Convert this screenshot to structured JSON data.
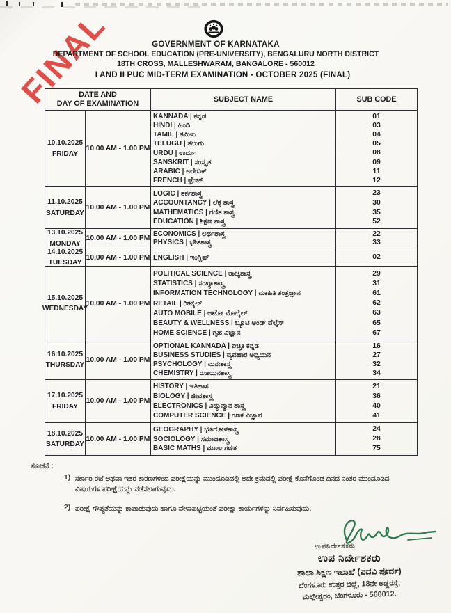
{
  "stamp": {
    "label": "FINAL",
    "color": "#de423c"
  },
  "header": {
    "org": "GOVERNMENT OF KARNATAKA",
    "dept": "DEPARTMENT OF SCHOOL EDUCATION (PRE-UNIVERSITY), BENGALURU NORTH DISTRICT",
    "address": "18TH CROSS, MALLESHWARAM, BANGALORE - 560012",
    "title": "I  AND II PUC MID-TERM EXAMINATION - OCTOBER 2025 (FINAL)",
    "emblem": "karnataka-government-emblem"
  },
  "table": {
    "header": {
      "datetime_line1": "DATE AND",
      "datetime_line2": "DAY OF EXAMINATION",
      "subject": "SUBJECT NAME",
      "code": "SUB CODE"
    },
    "rows": [
      {
        "date": "10.10.2025",
        "day": "FRIDAY",
        "time": "10.00 AM - 1.00 PM",
        "subjects": [
          {
            "label": "KANNADA | ಕನ್ನಡ",
            "code": "01"
          },
          {
            "label": "HINDI | ಹಿಂದಿ",
            "code": "03"
          },
          {
            "label": "TAMIL | ತಮಿಳು",
            "code": "04"
          },
          {
            "label": "TELUGU | ತೆಲುಗು",
            "code": "05"
          },
          {
            "label": "URDU | ಉರ್ದು",
            "code": "08"
          },
          {
            "label": "SANSKRIT | ಸಂಸ್ಕೃತ",
            "code": "09"
          },
          {
            "label": "ARABIC | ಅರೇಬಿಕ್",
            "code": "11"
          },
          {
            "label": "FRENCH | ಫ್ರೆಂಚ್",
            "code": "12"
          }
        ]
      },
      {
        "date": "11.10.2025",
        "day": "SATURDAY",
        "time": "10.00 AM - 1.00 PM",
        "subjects": [
          {
            "label": "LOGIC | ತರ್ಕಶಾಸ್ತ್ರ",
            "code": "23"
          },
          {
            "label": "ACCOUNTANCY | ಲೆಕ್ಕ ಶಾಸ್ತ್ರ",
            "code": "30"
          },
          {
            "label": "MATHEMATICS | ಗಣಿತ ಶಾಸ್ತ್ರ",
            "code": "35"
          },
          {
            "label": "EDUCATION | ಶಿಕ್ಷಣ ಶಾಸ್ತ್ರ",
            "code": "52"
          }
        ]
      },
      {
        "date": "13.10.2025",
        "day": "MONDAY",
        "time": "10.00 AM - 1.00 PM",
        "subjects": [
          {
            "label": "ECONOMICS | ಅರ್ಥಶಾಸ್ತ್ರ",
            "code": "22"
          },
          {
            "label": "PHYSICS | ಭೌತಶಾಸ್ತ್ರ",
            "code": "33"
          }
        ]
      },
      {
        "date": "14.10.2025",
        "day": "TUESDAY",
        "time": "10.00 AM - 1.00 PM",
        "subjects": [
          {
            "label": "ENGLISH | ಇಂಗ್ಲಿಷ್",
            "code": "02"
          }
        ]
      },
      {
        "date": "15.10.2025",
        "day": "WEDNESDAY",
        "time": "10.00 AM - 1.00 PM",
        "subjects": [
          {
            "label": "POLITICAL SCIENCE | ರಾಜ್ಯಶಾಸ್ತ್ರ",
            "code": "29"
          },
          {
            "label": "STATISTICS | ಸಂಖ್ಯಾಶಾಸ್ತ್ರ",
            "code": "31"
          },
          {
            "label": "INFORMATION TECHNOLOGY | ಮಾಹಿತಿ ತಂತ್ರಜ್ಞಾನ",
            "code": "61"
          },
          {
            "label": "RETAIL | ರೀಟೈಲ್",
            "code": "62"
          },
          {
            "label": "AUTO MOBILE | ಆಟೋ ಮೊಬೈಲ್",
            "code": "63"
          },
          {
            "label": "BEAUTY & WELLNESS | ಬ್ಯೂಟಿ ಅಂಡ್ ವೆಲ್ನೆಸ್",
            "code": "65"
          },
          {
            "label": "HOME SCIENCE | ಗೃಹ ವಿಜ್ಞಾನ",
            "code": "67"
          }
        ]
      },
      {
        "date": "16.10.2025",
        "day": "THURSDAY",
        "time": "10.00 AM - 1.00 PM",
        "subjects": [
          {
            "label": "OPTIONAL KANNADA | ಐಚ್ಛಿಕ ಕನ್ನಡ",
            "code": "16"
          },
          {
            "label": "BUSINESS STUDIES | ವ್ಯವಹಾರ ಅಧ್ಯಯನ",
            "code": "27"
          },
          {
            "label": "PSYCHOLOGY | ಮನಃಶಾಸ್ತ್ರ",
            "code": "32"
          },
          {
            "label": "CHEMISTRY | ರಸಾಯನಶಾಸ್ತ್ರ",
            "code": "34"
          }
        ]
      },
      {
        "date": "17.10.2025",
        "day": "FRIDAY",
        "time": "10.00 AM - 1.00 PM",
        "subjects": [
          {
            "label": "HISTORY | ಇತಿಹಾಸ",
            "code": "21"
          },
          {
            "label": "BIOLOGY | ಜೀವಶಾಸ್ತ್ರ",
            "code": "36"
          },
          {
            "label": "ELECTRONICS | ವಿದ್ಯುನ್ಮಾನ ಶಾಸ್ತ್ರ",
            "code": "40"
          },
          {
            "label": "COMPUTER SCIENCE | ಗಣಕ ವಿಜ್ಞಾನ",
            "code": "41"
          }
        ]
      },
      {
        "date": "18.10.2025",
        "day": "SATURDAY",
        "time": "10.00 AM - 1.00 PM",
        "subjects": [
          {
            "label": "GEOGRAPHY | ಭೂಗೋಳಶಾಸ್ತ್ರ",
            "code": "24"
          },
          {
            "label": "SOCIOLOGY | ಸಮಾಜಶಾಸ್ತ್ರ",
            "code": "28"
          },
          {
            "label": "BASIC MATHS | ಮೂಲ ಗಣಿತ",
            "code": "75"
          }
        ]
      }
    ]
  },
  "notes": {
    "heading": "ಸೂಚನೆ :",
    "items": [
      {
        "num": "1)",
        "text": "ಸರ್ಕಾರಿ ರಜೆ ಅಥವಾ ಇತರ ಕಾರಣಗಳಿಂದ ಪರೀಕ್ಷೆಯನ್ನು ಮುಂದೂಡಿದಲ್ಲಿ ಅದೇ ಕ್ರಮದಲ್ಲಿ ಪರೀಕ್ಷೆ ಕೊನೆಗೊಂಡ ದಿನದ ನಂತರ ಮುಂದೂಡಿದ ವಿಷಯಗಳ ಪರೀಕ್ಷೆಯನ್ನು ನಡೆಸಲಾಗುವುದು."
      },
      {
        "num": "2)",
        "text": "ಪರೀಕ್ಷೆ ಗೌಪ್ಯತೆಯನ್ನು ಕಾಪಾಡುವುದು ಹಾಗೂ ವೇಳಾಪಟ್ಟಿಯಂತೆ ಪರೀಕ್ಷಾ ಕಾರ್ಯಗಳನ್ನು ನಿರ್ವಹಿಸುವುದು."
      }
    ]
  },
  "signature": {
    "stamp_text": "ಉಪನಿರ್ದೇಶಕರು",
    "title": "ಉಪ ನಿರ್ದೇಶಕರು",
    "dept": "ಶಾಲಾ ಶಿಕ್ಷಣ ಇಲಾಖೆ (ಪದವಿ ಪೂರ್ವ)",
    "address1": "ಬೆಂಗಳೂರು ಉತ್ತರ ಜಿಲ್ಲೆ, 18ನೇ ಅಡ್ಡರಸ್ತೆ,",
    "address2": "ಮಲ್ಲೇಶ್ವರಂ, ಬೆಂಗಳೂರು - 560012.",
    "ink_color": "#2f7a4e"
  }
}
